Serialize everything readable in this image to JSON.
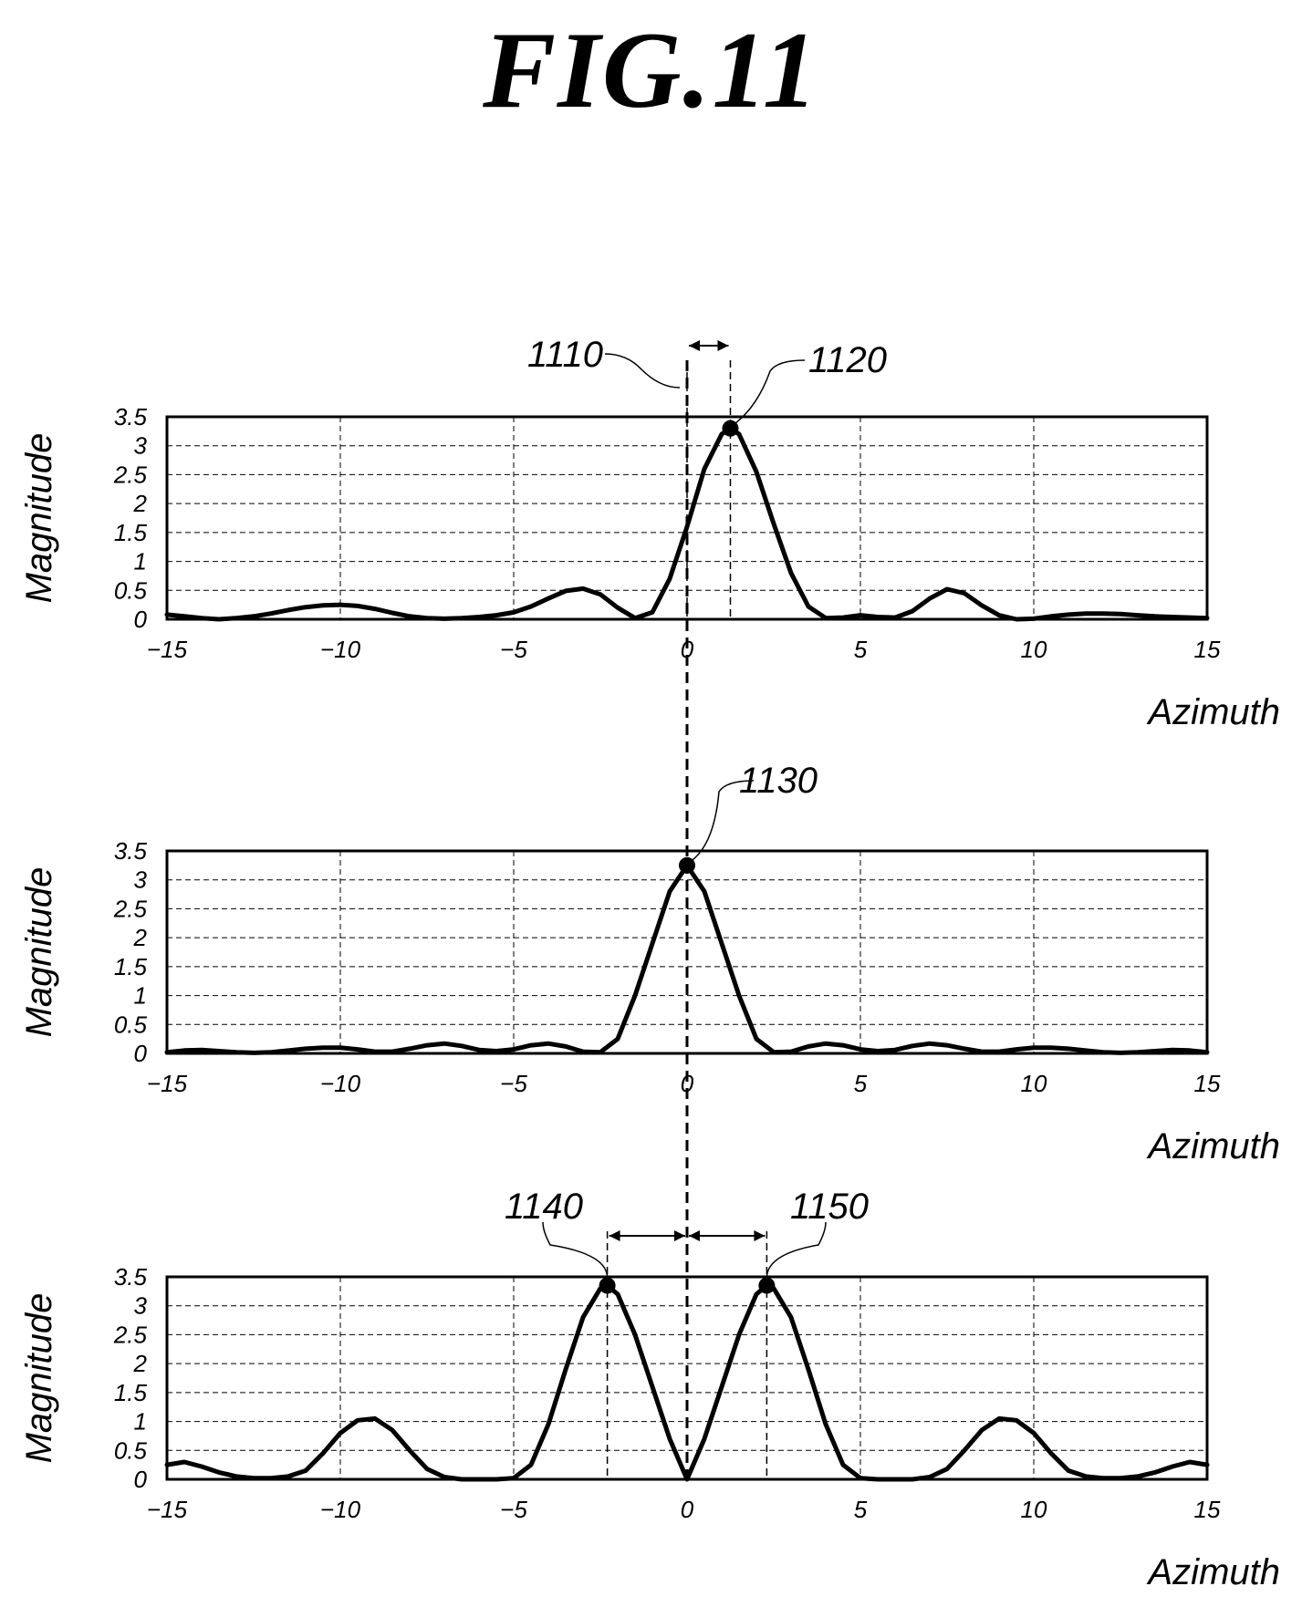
{
  "figure": {
    "title": "FIG.11"
  },
  "chart_data": [
    {
      "type": "line",
      "xlabel": "Azimuth",
      "ylabel": "Magnitude",
      "xlim": [
        -15,
        15
      ],
      "ylim": [
        0,
        3.5
      ],
      "xticks": [
        "-15",
        "-10",
        "-5",
        "0",
        "5",
        "10",
        "15"
      ],
      "yticks": [
        "0",
        "0.5",
        "1",
        "1.5",
        "2",
        "2.5",
        "3",
        "3.5"
      ],
      "grid": true,
      "series": [
        {
          "x": [
            -15,
            -14.5,
            -14,
            -13.5,
            -13,
            -12.5,
            -12,
            -11.5,
            -11,
            -10.5,
            -10,
            -9.5,
            -9,
            -8.5,
            -8,
            -7.5,
            -7,
            -6.5,
            -6,
            -5.5,
            -5,
            -4.5,
            -4,
            -3.5,
            -3,
            -2.5,
            -2,
            -1.5,
            -1,
            -0.5,
            0,
            0.5,
            1,
            1.25,
            1.5,
            2,
            2.5,
            3,
            3.5,
            4,
            4.5,
            5,
            5.5,
            6,
            6.5,
            7,
            7.5,
            8,
            8.5,
            9,
            9.5,
            10,
            10.5,
            11,
            11.5,
            12,
            12.5,
            13,
            13.5,
            14,
            14.5,
            15
          ],
          "y": [
            0.08,
            0.05,
            0.02,
            0,
            0.02,
            0.05,
            0.1,
            0.16,
            0.21,
            0.24,
            0.25,
            0.23,
            0.18,
            0.11,
            0.05,
            0.02,
            0.01,
            0.02,
            0.04,
            0.07,
            0.12,
            0.22,
            0.36,
            0.49,
            0.53,
            0.43,
            0.2,
            0.02,
            0.12,
            0.7,
            1.6,
            2.6,
            3.2,
            3.3,
            3.2,
            2.55,
            1.65,
            0.8,
            0.22,
            0.02,
            0.03,
            0.07,
            0.04,
            0.03,
            0.14,
            0.36,
            0.52,
            0.45,
            0.24,
            0.07,
            0,
            0.01,
            0.05,
            0.08,
            0.1,
            0.1,
            0.09,
            0.07,
            0.05,
            0.04,
            0.03,
            0.02
          ]
        }
      ],
      "markers": [
        {
          "x": 1.25,
          "y": 3.3,
          "label": "1120"
        }
      ],
      "guides": [
        {
          "x": 0,
          "label": "1110"
        },
        {
          "x": 1.25
        }
      ],
      "span_arrows": [
        {
          "from": 0,
          "to": 1.25
        }
      ]
    },
    {
      "type": "line",
      "xlabel": "Azimuth",
      "ylabel": "Magnitude",
      "xlim": [
        -15,
        15
      ],
      "ylim": [
        0,
        3.5
      ],
      "xticks": [
        "-15",
        "-10",
        "-5",
        "0",
        "5",
        "10",
        "15"
      ],
      "yticks": [
        "0",
        "0.5",
        "1",
        "1.5",
        "2",
        "2.5",
        "3",
        "3.5"
      ],
      "grid": true,
      "series": [
        {
          "x": [
            -15,
            -14.5,
            -14,
            -13.5,
            -13,
            -12.5,
            -12,
            -11.5,
            -11,
            -10.5,
            -10,
            -9.5,
            -9,
            -8.5,
            -8,
            -7.5,
            -7,
            -6.5,
            -6,
            -5.5,
            -5,
            -4.5,
            -4,
            -3.5,
            -3,
            -2.5,
            -2,
            -1.5,
            -1,
            -0.5,
            0,
            0.5,
            1,
            1.5,
            2,
            2.5,
            3,
            3.5,
            4,
            4.5,
            5,
            5.5,
            6,
            6.5,
            7,
            7.5,
            8,
            8.5,
            9,
            9.5,
            10,
            10.5,
            11,
            11.5,
            12,
            12.5,
            13,
            13.5,
            14,
            14.5,
            15
          ],
          "y": [
            0.02,
            0.05,
            0.06,
            0.04,
            0.02,
            0.01,
            0.02,
            0.05,
            0.08,
            0.1,
            0.1,
            0.07,
            0.03,
            0.03,
            0.08,
            0.14,
            0.17,
            0.13,
            0.06,
            0.04,
            0.07,
            0.14,
            0.17,
            0.12,
            0.03,
            0.02,
            0.25,
            1.0,
            1.9,
            2.8,
            3.25,
            2.8,
            1.9,
            1.0,
            0.25,
            0.02,
            0.03,
            0.12,
            0.17,
            0.14,
            0.07,
            0.04,
            0.06,
            0.13,
            0.17,
            0.14,
            0.08,
            0.03,
            0.03,
            0.07,
            0.1,
            0.1,
            0.08,
            0.05,
            0.02,
            0.01,
            0.02,
            0.04,
            0.06,
            0.05,
            0.02
          ]
        }
      ],
      "markers": [
        {
          "x": 0,
          "y": 3.25,
          "label": "1130"
        }
      ],
      "guides": [],
      "span_arrows": []
    },
    {
      "type": "line",
      "xlabel": "Azimuth",
      "ylabel": "Magnitude",
      "xlim": [
        -15,
        15
      ],
      "ylim": [
        0,
        3.5
      ],
      "xticks": [
        "-15",
        "-10",
        "-5",
        "0",
        "5",
        "10",
        "15"
      ],
      "yticks": [
        "0",
        "0.5",
        "1",
        "1.5",
        "2",
        "2.5",
        "3",
        "3.5"
      ],
      "grid": true,
      "series": [
        {
          "x": [
            -15,
            -14.5,
            -14,
            -13.5,
            -13,
            -12.5,
            -12,
            -11.5,
            -11,
            -10.5,
            -10,
            -9.5,
            -9,
            -8.5,
            -8,
            -7.5,
            -7,
            -6.5,
            -6,
            -5.5,
            -5,
            -4.5,
            -4,
            -3.5,
            -3,
            -2.5,
            -2.3,
            -2,
            -1.5,
            -1,
            -0.5,
            0,
            0.5,
            1,
            1.5,
            2,
            2.3,
            2.5,
            3,
            3.5,
            4,
            4.5,
            5,
            5.5,
            6,
            6.5,
            7,
            7.5,
            8,
            8.5,
            9,
            9.5,
            10,
            10.5,
            11,
            11.5,
            12,
            12.5,
            13,
            13.5,
            14,
            14.5,
            15
          ],
          "y": [
            0.25,
            0.3,
            0.22,
            0.12,
            0.05,
            0.02,
            0.02,
            0.05,
            0.15,
            0.45,
            0.8,
            1.02,
            1.05,
            0.85,
            0.5,
            0.18,
            0.04,
            0.0,
            0.0,
            0.0,
            0.02,
            0.25,
            0.95,
            1.9,
            2.8,
            3.3,
            3.35,
            3.2,
            2.5,
            1.6,
            0.7,
            0.0,
            0.7,
            1.6,
            2.5,
            3.2,
            3.35,
            3.3,
            2.8,
            1.9,
            0.95,
            0.25,
            0.02,
            0.0,
            0.0,
            0.0,
            0.04,
            0.18,
            0.5,
            0.85,
            1.05,
            1.02,
            0.8,
            0.45,
            0.15,
            0.05,
            0.02,
            0.02,
            0.05,
            0.12,
            0.22,
            0.3,
            0.25
          ]
        }
      ],
      "markers": [
        {
          "x": -2.3,
          "y": 3.35,
          "label": "1140"
        },
        {
          "x": 2.3,
          "y": 3.35,
          "label": "1150"
        }
      ],
      "guides": [
        {
          "x": -2.3
        },
        {
          "x": 2.3
        }
      ],
      "span_arrows": [
        {
          "from": -2.3,
          "to": 0
        },
        {
          "from": 0,
          "to": 2.3
        }
      ]
    }
  ]
}
